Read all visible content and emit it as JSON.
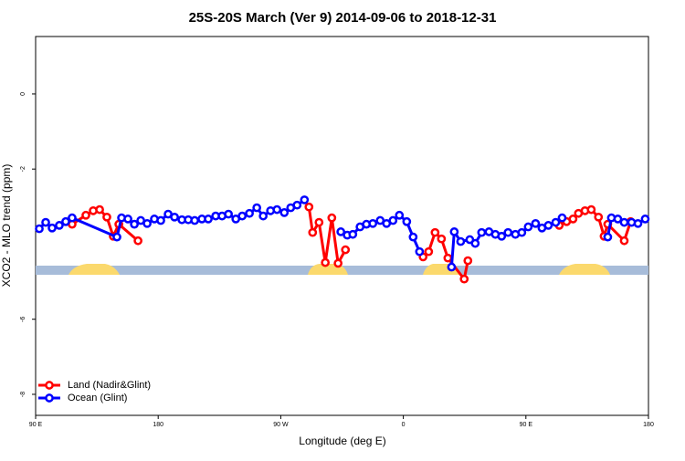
{
  "chart_data": {
    "type": "line",
    "title": "25S-20S March (Ver 9)   2014-09-06 to 2018-12-31",
    "xlabel": "Longitude (deg E)",
    "ylabel": "XCO2 - MLO trend (ppm)",
    "xlim": [
      90,
      540
    ],
    "xticks": [
      {
        "value": 90,
        "label": "90 E"
      },
      {
        "value": 180,
        "label": "180"
      },
      {
        "value": 270,
        "label": "90 W"
      },
      {
        "value": 360,
        "label": "0"
      },
      {
        "value": 450,
        "label": "90 E"
      },
      {
        "value": 540,
        "label": "180"
      }
    ],
    "ylim": [
      -8.56,
      1.53
    ],
    "yticks": [
      0,
      -2,
      -6,
      -8
    ],
    "legend": "bottom-left",
    "series": [
      {
        "name": "Land (Nadir&Glint)",
        "color": "#ff0000",
        "x": [
          116.8,
          126.9,
          132.3,
          137,
          142.3,
          147,
          151.1,
          165.2,
          230,
          290.7,
          293.4,
          298.1,
          302.7,
          307.5,
          312.1,
          317.5,
          350,
          374.5,
          378.6,
          383.3,
          388,
          392.7,
          404.7,
          407.4,
          440,
          474.5,
          479.9,
          484.6,
          488.6,
          493.4,
          498,
          503.3,
          507.4,
          510.1,
          522.2,
          526.9
        ],
        "values": [
          -3.47,
          -3.23,
          -3.11,
          -3.08,
          -3.28,
          -3.79,
          -3.47,
          -3.91,
          null,
          -3.01,
          -3.69,
          -3.42,
          -4.49,
          -3.3,
          -4.51,
          -4.15,
          null,
          -4.34,
          -4.2,
          -3.69,
          -3.86,
          -4.37,
          -4.93,
          -4.44,
          null,
          -3.5,
          -3.4,
          -3.33,
          -3.18,
          -3.11,
          -3.08,
          -3.28,
          -3.79,
          -3.47,
          -3.91,
          -3.4
        ]
      },
      {
        "name": "Ocean (Glint)",
        "color": "#0000ff",
        "x": [
          92.7,
          97.4,
          102.1,
          107.4,
          112.1,
          116.8,
          149.7,
          153.1,
          157.8,
          162.5,
          167.2,
          171.9,
          177.2,
          181.9,
          187.3,
          192,
          197.4,
          202.1,
          206.8,
          212.1,
          216.8,
          222.2,
          226.9,
          231.6,
          237,
          241.7,
          247,
          252.4,
          257.1,
          262.5,
          267.2,
          272.6,
          277.3,
          282,
          287.4,
          300,
          314.1,
          318.8,
          322.9,
          328.2,
          332.9,
          337.6,
          343,
          347.7,
          352.4,
          357.1,
          362.5,
          367.2,
          371.9,
          385,
          395.4,
          397.4,
          402.1,
          408.8,
          412.8,
          417.5,
          422.9,
          427.6,
          432.2,
          436.9,
          442.3,
          447,
          451.7,
          457.1,
          461.8,
          466.5,
          471.9,
          476.6,
          495,
          510.1,
          512.8,
          517.5,
          522.2,
          527.6,
          532.3,
          537.6
        ],
        "values": [
          -3.59,
          -3.42,
          -3.57,
          -3.5,
          -3.4,
          -3.3,
          -3.81,
          -3.3,
          -3.33,
          -3.47,
          -3.37,
          -3.45,
          -3.33,
          -3.37,
          -3.2,
          -3.28,
          -3.35,
          -3.35,
          -3.37,
          -3.33,
          -3.33,
          -3.25,
          -3.25,
          -3.2,
          -3.33,
          -3.25,
          -3.18,
          -3.03,
          -3.25,
          -3.11,
          -3.08,
          -3.16,
          -3.03,
          -2.96,
          -2.82,
          null,
          -3.67,
          -3.76,
          -3.74,
          -3.54,
          -3.47,
          -3.45,
          -3.37,
          -3.45,
          -3.37,
          -3.23,
          -3.4,
          -3.81,
          -4.2,
          null,
          -4.61,
          -3.67,
          -3.93,
          -3.88,
          -3.98,
          -3.69,
          -3.67,
          -3.74,
          -3.79,
          -3.69,
          -3.74,
          -3.69,
          -3.54,
          -3.45,
          -3.57,
          -3.5,
          -3.42,
          -3.3,
          null,
          -3.81,
          -3.3,
          -3.33,
          -3.42,
          -3.42,
          -3.45,
          -3.33
        ]
      }
    ]
  }
}
